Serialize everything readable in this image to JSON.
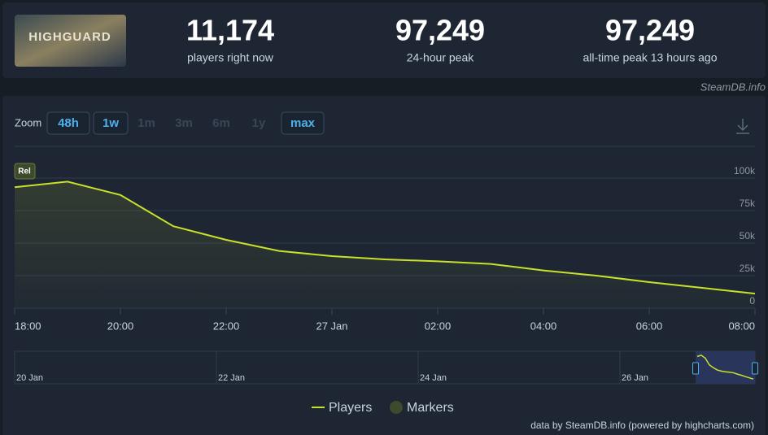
{
  "header": {
    "game_logo": "HIGHGUARD",
    "stats": [
      {
        "value": "11,174",
        "label": "players right now"
      },
      {
        "value": "97,249",
        "label": "24-hour peak"
      },
      {
        "value": "97,249",
        "label": "all-time peak 13 hours ago"
      }
    ],
    "source": "SteamDB.info"
  },
  "zoom": {
    "label": "Zoom",
    "buttons": [
      {
        "text": "48h",
        "active": true
      },
      {
        "text": "1w",
        "active": true
      },
      {
        "text": "1m",
        "active": false
      },
      {
        "text": "3m",
        "active": false
      },
      {
        "text": "6m",
        "active": false
      },
      {
        "text": "1y",
        "active": false
      },
      {
        "text": "max",
        "active": true
      }
    ]
  },
  "chart_data": {
    "type": "area",
    "categories": [
      "18:00",
      null,
      "20:00",
      null,
      "22:00",
      null,
      "27 Jan",
      null,
      "02:00",
      null,
      "04:00",
      null,
      "06:00",
      null,
      "08:00"
    ],
    "series": [
      {
        "name": "Players",
        "color": "#c8e12a",
        "values": [
          93000,
          97249,
          87000,
          63000,
          52500,
          44000,
          40000,
          37500,
          36000,
          34000,
          29000,
          25000,
          20000,
          15600,
          11174
        ]
      },
      {
        "name": "Markers",
        "color": "#3e4a2c"
      }
    ],
    "marker_label": "Rel",
    "ylim": [
      0,
      100000
    ],
    "yticks": [
      0,
      {
        "value": 25000,
        "label": "25k"
      },
      {
        "value": 50000,
        "label": "50k"
      },
      {
        "value": 75000,
        "label": "75k"
      },
      {
        "value": 100000,
        "label": "100k"
      }
    ],
    "grid": true,
    "navigator": {
      "labels": [
        "20 Jan",
        "22 Jan",
        "24 Jan",
        "26 Jan"
      ]
    },
    "credit": "data by SteamDB.info (powered by highcharts.com)"
  }
}
